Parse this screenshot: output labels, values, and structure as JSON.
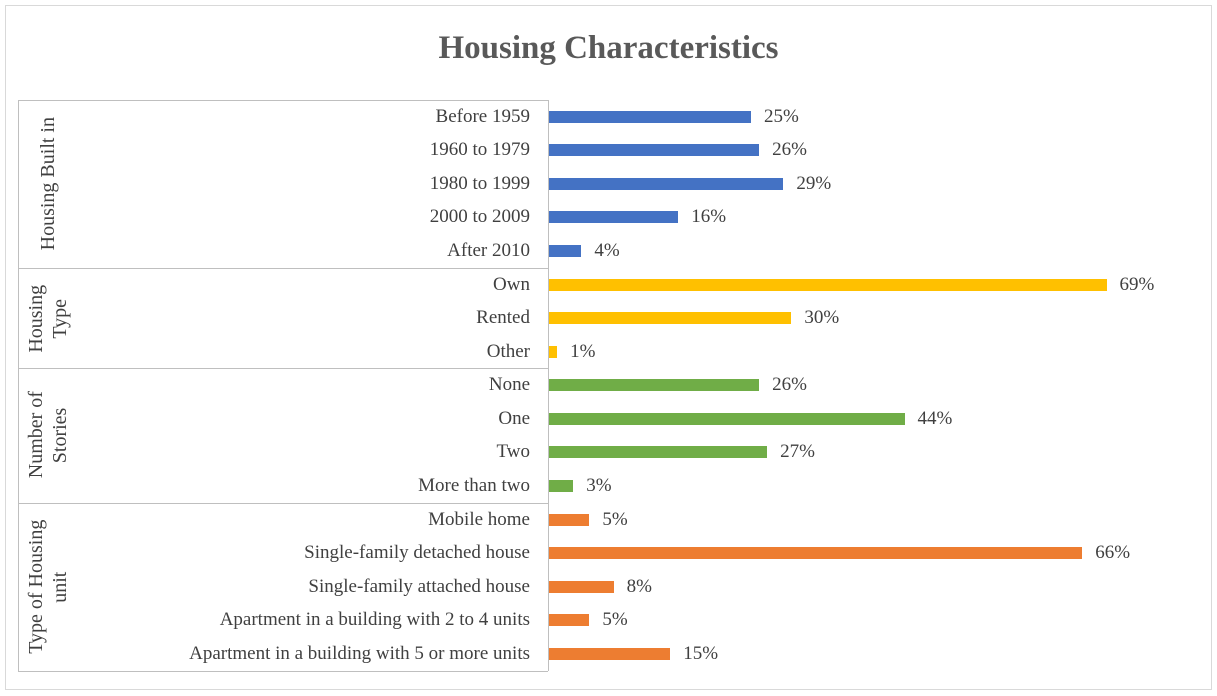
{
  "chart_data": {
    "type": "bar",
    "title": "Housing Characteristics",
    "groups": [
      {
        "name": "Housing Built in",
        "color": "#4472c4",
        "categories": [
          "Before 1959",
          "1960 to 1979",
          "1980 to 1999",
          "2000 to 2009",
          "After 2010"
        ],
        "values": [
          25,
          26,
          29,
          16,
          4
        ],
        "value_labels": [
          "25%",
          "26%",
          "29%",
          "16%",
          "4%"
        ]
      },
      {
        "name": "Housing Type",
        "color": "#ffc000",
        "categories": [
          "Own",
          "Rented",
          "Other"
        ],
        "values": [
          69,
          30,
          1
        ],
        "value_labels": [
          "69%",
          "30%",
          "1%"
        ]
      },
      {
        "name": "Number of Stories",
        "color": "#70ad47",
        "categories": [
          "None",
          "One",
          "Two",
          "More than two"
        ],
        "values": [
          26,
          44,
          27,
          3
        ],
        "value_labels": [
          "26%",
          "44%",
          "27%",
          "3%"
        ]
      },
      {
        "name": "Type of Housing unit",
        "color": "#ed7d31",
        "categories": [
          "Mobile home",
          "Single-family detached house",
          "Single-family attached house",
          "Apartment in a building with 2 to 4 units",
          "Apartment in a building with 5 or more units"
        ],
        "values": [
          5,
          66,
          8,
          5,
          15
        ],
        "value_labels": [
          "5%",
          "66%",
          "8%",
          "5%",
          "15%"
        ]
      }
    ]
  }
}
